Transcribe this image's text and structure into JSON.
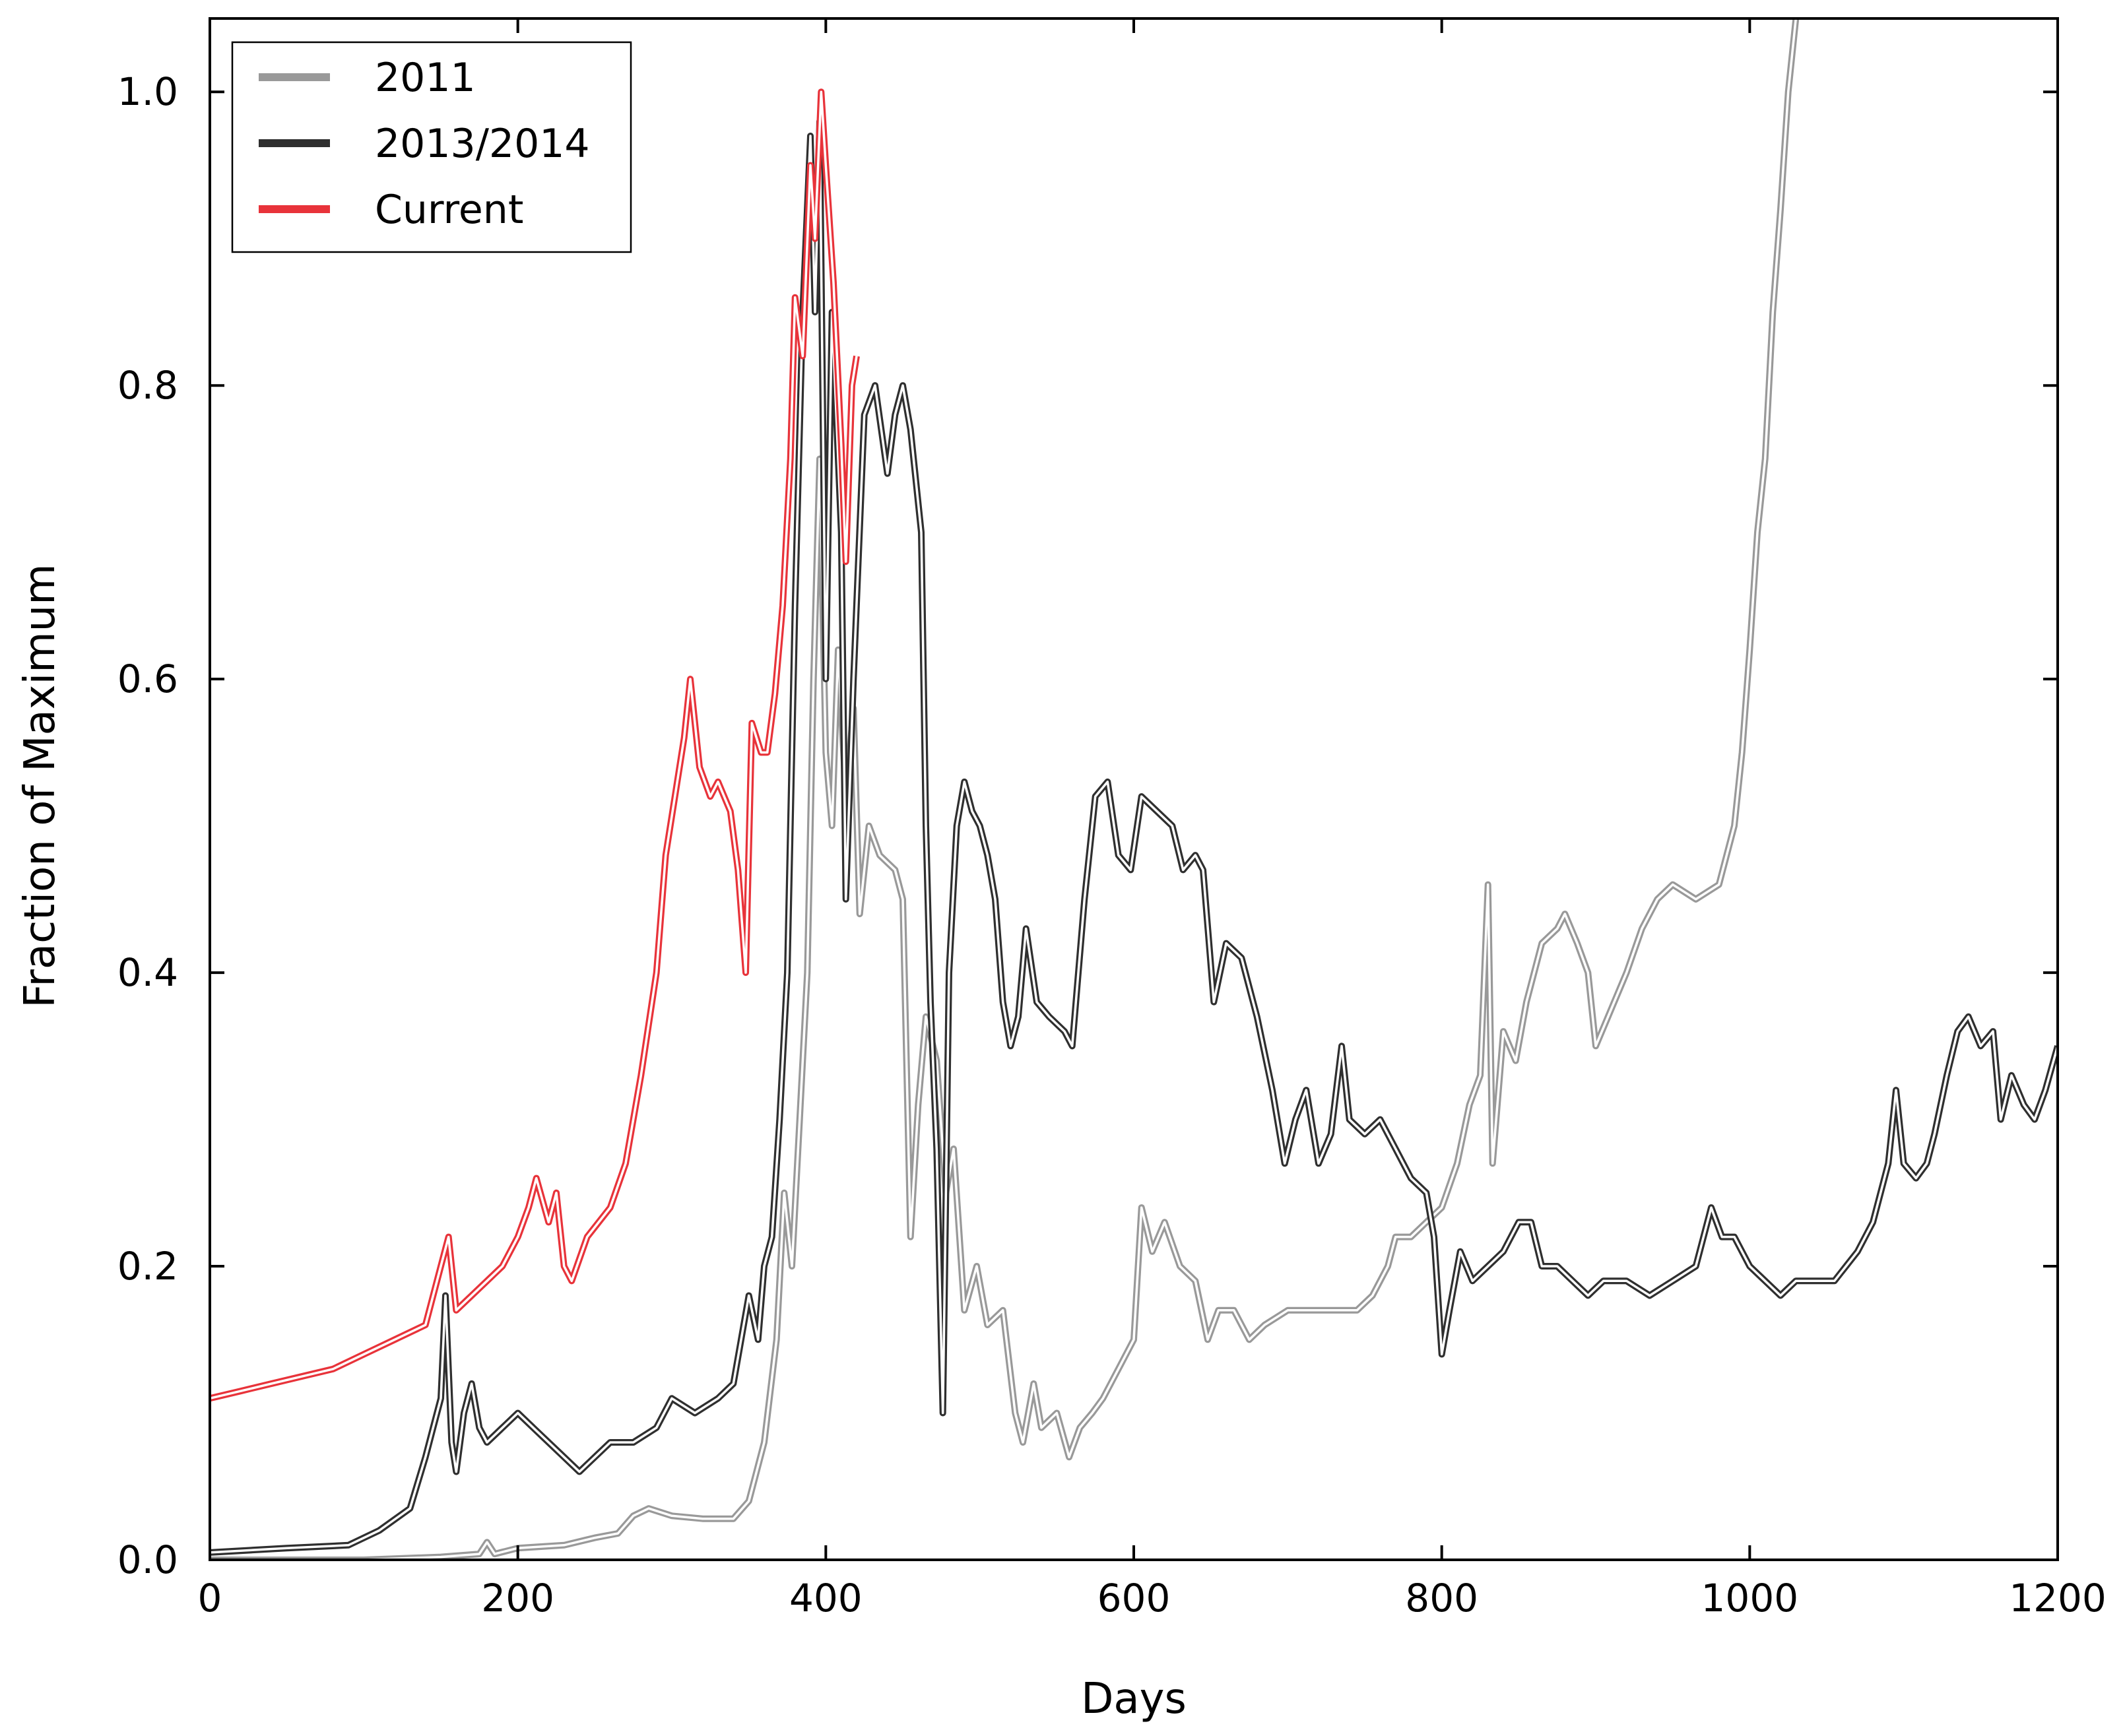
{
  "chart_data": {
    "type": "line",
    "xlabel": "Days",
    "ylabel": "Fraction of Maximum",
    "xlim": [
      0,
      1200
    ],
    "ylim": [
      0,
      1.05
    ],
    "xticks": [
      0,
      200,
      400,
      600,
      800,
      1000,
      1200
    ],
    "yticks": [
      0.0,
      0.2,
      0.4,
      0.6,
      0.8,
      1.0
    ],
    "xtick_labels": [
      "0",
      "200",
      "400",
      "600",
      "800",
      "1000",
      "1200"
    ],
    "ytick_labels": [
      "0.0",
      "0.2",
      "0.4",
      "0.6",
      "0.8",
      "1.0"
    ],
    "grid": false,
    "legend": {
      "position": "top-left"
    },
    "series": [
      {
        "name": "2011",
        "color": "#999999",
        "points": [
          [
            0,
            0.0
          ],
          [
            60,
            0.0
          ],
          [
            100,
            0.0
          ],
          [
            150,
            0.002
          ],
          [
            175,
            0.004
          ],
          [
            180,
            0.012
          ],
          [
            185,
            0.004
          ],
          [
            200,
            0.008
          ],
          [
            230,
            0.01
          ],
          [
            250,
            0.015
          ],
          [
            265,
            0.018
          ],
          [
            275,
            0.03
          ],
          [
            285,
            0.035
          ],
          [
            300,
            0.03
          ],
          [
            320,
            0.028
          ],
          [
            340,
            0.028
          ],
          [
            350,
            0.04
          ],
          [
            360,
            0.08
          ],
          [
            368,
            0.15
          ],
          [
            373,
            0.25
          ],
          [
            378,
            0.2
          ],
          [
            383,
            0.3
          ],
          [
            388,
            0.4
          ],
          [
            392,
            0.6
          ],
          [
            396,
            0.75
          ],
          [
            400,
            0.55
          ],
          [
            404,
            0.5
          ],
          [
            408,
            0.62
          ],
          [
            413,
            0.52
          ],
          [
            418,
            0.58
          ],
          [
            422,
            0.44
          ],
          [
            428,
            0.5
          ],
          [
            435,
            0.48
          ],
          [
            445,
            0.47
          ],
          [
            450,
            0.45
          ],
          [
            455,
            0.22
          ],
          [
            460,
            0.31
          ],
          [
            465,
            0.37
          ],
          [
            472,
            0.34
          ],
          [
            478,
            0.25
          ],
          [
            483,
            0.28
          ],
          [
            490,
            0.17
          ],
          [
            498,
            0.2
          ],
          [
            505,
            0.16
          ],
          [
            515,
            0.17
          ],
          [
            523,
            0.1
          ],
          [
            528,
            0.08
          ],
          [
            535,
            0.12
          ],
          [
            540,
            0.09
          ],
          [
            550,
            0.1
          ],
          [
            558,
            0.07
          ],
          [
            565,
            0.09
          ],
          [
            573,
            0.1
          ],
          [
            580,
            0.11
          ],
          [
            590,
            0.13
          ],
          [
            600,
            0.15
          ],
          [
            605,
            0.24
          ],
          [
            612,
            0.21
          ],
          [
            620,
            0.23
          ],
          [
            630,
            0.2
          ],
          [
            640,
            0.19
          ],
          [
            648,
            0.15
          ],
          [
            655,
            0.17
          ],
          [
            665,
            0.17
          ],
          [
            675,
            0.15
          ],
          [
            685,
            0.16
          ],
          [
            700,
            0.17
          ],
          [
            715,
            0.17
          ],
          [
            730,
            0.17
          ],
          [
            745,
            0.17
          ],
          [
            755,
            0.18
          ],
          [
            765,
            0.2
          ],
          [
            770,
            0.22
          ],
          [
            780,
            0.22
          ],
          [
            790,
            0.23
          ],
          [
            800,
            0.24
          ],
          [
            810,
            0.27
          ],
          [
            818,
            0.31
          ],
          [
            825,
            0.33
          ],
          [
            830,
            0.46
          ],
          [
            833,
            0.27
          ],
          [
            840,
            0.36
          ],
          [
            848,
            0.34
          ],
          [
            855,
            0.38
          ],
          [
            865,
            0.42
          ],
          [
            875,
            0.43
          ],
          [
            880,
            0.44
          ],
          [
            888,
            0.42
          ],
          [
            895,
            0.4
          ],
          [
            900,
            0.35
          ],
          [
            908,
            0.37
          ],
          [
            920,
            0.4
          ],
          [
            930,
            0.43
          ],
          [
            940,
            0.45
          ],
          [
            950,
            0.46
          ],
          [
            965,
            0.45
          ],
          [
            980,
            0.46
          ],
          [
            990,
            0.5
          ],
          [
            995,
            0.55
          ],
          [
            1000,
            0.62
          ],
          [
            1005,
            0.7
          ],
          [
            1010,
            0.75
          ],
          [
            1015,
            0.85
          ],
          [
            1020,
            0.92
          ],
          [
            1025,
            1.0
          ],
          [
            1030,
            1.05
          ]
        ]
      },
      {
        "name": "2013/2014",
        "color": "#2f2f2f",
        "points": [
          [
            0,
            0.005
          ],
          [
            50,
            0.008
          ],
          [
            90,
            0.01
          ],
          [
            110,
            0.02
          ],
          [
            130,
            0.035
          ],
          [
            140,
            0.07
          ],
          [
            145,
            0.09
          ],
          [
            150,
            0.11
          ],
          [
            153,
            0.18
          ],
          [
            157,
            0.08
          ],
          [
            160,
            0.06
          ],
          [
            165,
            0.1
          ],
          [
            170,
            0.12
          ],
          [
            175,
            0.09
          ],
          [
            180,
            0.08
          ],
          [
            190,
            0.09
          ],
          [
            200,
            0.1
          ],
          [
            210,
            0.09
          ],
          [
            220,
            0.08
          ],
          [
            230,
            0.07
          ],
          [
            240,
            0.06
          ],
          [
            250,
            0.07
          ],
          [
            260,
            0.08
          ],
          [
            275,
            0.08
          ],
          [
            290,
            0.09
          ],
          [
            300,
            0.11
          ],
          [
            315,
            0.1
          ],
          [
            330,
            0.11
          ],
          [
            340,
            0.12
          ],
          [
            345,
            0.15
          ],
          [
            350,
            0.18
          ],
          [
            356,
            0.15
          ],
          [
            360,
            0.2
          ],
          [
            365,
            0.22
          ],
          [
            370,
            0.3
          ],
          [
            375,
            0.4
          ],
          [
            380,
            0.65
          ],
          [
            385,
            0.85
          ],
          [
            390,
            0.97
          ],
          [
            393,
            0.85
          ],
          [
            396,
            0.98
          ],
          [
            400,
            0.6
          ],
          [
            404,
            0.85
          ],
          [
            410,
            0.7
          ],
          [
            413,
            0.45
          ],
          [
            418,
            0.6
          ],
          [
            425,
            0.78
          ],
          [
            432,
            0.8
          ],
          [
            440,
            0.74
          ],
          [
            445,
            0.78
          ],
          [
            450,
            0.8
          ],
          [
            455,
            0.77
          ],
          [
            462,
            0.7
          ],
          [
            465,
            0.5
          ],
          [
            468,
            0.38
          ],
          [
            472,
            0.28
          ],
          [
            476,
            0.1
          ],
          [
            480,
            0.4
          ],
          [
            485,
            0.5
          ],
          [
            490,
            0.53
          ],
          [
            495,
            0.51
          ],
          [
            500,
            0.5
          ],
          [
            505,
            0.48
          ],
          [
            510,
            0.45
          ],
          [
            515,
            0.38
          ],
          [
            520,
            0.35
          ],
          [
            525,
            0.37
          ],
          [
            530,
            0.43
          ],
          [
            537,
            0.38
          ],
          [
            545,
            0.37
          ],
          [
            555,
            0.36
          ],
          [
            560,
            0.35
          ],
          [
            568,
            0.45
          ],
          [
            575,
            0.52
          ],
          [
            583,
            0.53
          ],
          [
            590,
            0.48
          ],
          [
            598,
            0.47
          ],
          [
            605,
            0.52
          ],
          [
            615,
            0.51
          ],
          [
            625,
            0.5
          ],
          [
            632,
            0.47
          ],
          [
            640,
            0.48
          ],
          [
            645,
            0.47
          ],
          [
            652,
            0.38
          ],
          [
            660,
            0.42
          ],
          [
            670,
            0.41
          ],
          [
            680,
            0.37
          ],
          [
            690,
            0.32
          ],
          [
            698,
            0.27
          ],
          [
            705,
            0.3
          ],
          [
            712,
            0.32
          ],
          [
            720,
            0.27
          ],
          [
            728,
            0.29
          ],
          [
            735,
            0.35
          ],
          [
            740,
            0.3
          ],
          [
            750,
            0.29
          ],
          [
            760,
            0.3
          ],
          [
            770,
            0.28
          ],
          [
            780,
            0.26
          ],
          [
            790,
            0.25
          ],
          [
            795,
            0.22
          ],
          [
            800,
            0.14
          ],
          [
            805,
            0.17
          ],
          [
            812,
            0.21
          ],
          [
            820,
            0.19
          ],
          [
            830,
            0.2
          ],
          [
            840,
            0.21
          ],
          [
            850,
            0.23
          ],
          [
            858,
            0.23
          ],
          [
            865,
            0.2
          ],
          [
            875,
            0.2
          ],
          [
            885,
            0.19
          ],
          [
            895,
            0.18
          ],
          [
            905,
            0.19
          ],
          [
            920,
            0.19
          ],
          [
            935,
            0.18
          ],
          [
            950,
            0.19
          ],
          [
            965,
            0.2
          ],
          [
            975,
            0.24
          ],
          [
            982,
            0.22
          ],
          [
            990,
            0.22
          ],
          [
            1000,
            0.2
          ],
          [
            1010,
            0.19
          ],
          [
            1020,
            0.18
          ],
          [
            1030,
            0.19
          ],
          [
            1040,
            0.19
          ],
          [
            1055,
            0.19
          ],
          [
            1070,
            0.21
          ],
          [
            1080,
            0.23
          ],
          [
            1090,
            0.27
          ],
          [
            1095,
            0.32
          ],
          [
            1100,
            0.27
          ],
          [
            1108,
            0.26
          ],
          [
            1115,
            0.27
          ],
          [
            1120,
            0.29
          ],
          [
            1128,
            0.33
          ],
          [
            1135,
            0.36
          ],
          [
            1142,
            0.37
          ],
          [
            1150,
            0.35
          ],
          [
            1158,
            0.36
          ],
          [
            1163,
            0.3
          ],
          [
            1170,
            0.33
          ],
          [
            1178,
            0.31
          ],
          [
            1185,
            0.3
          ],
          [
            1192,
            0.32
          ],
          [
            1200,
            0.35
          ]
        ]
      },
      {
        "name": "Current",
        "color": "#e8333a",
        "points": [
          [
            0,
            0.11
          ],
          [
            20,
            0.115
          ],
          [
            40,
            0.12
          ],
          [
            60,
            0.125
          ],
          [
            80,
            0.13
          ],
          [
            100,
            0.14
          ],
          [
            120,
            0.15
          ],
          [
            140,
            0.16
          ],
          [
            150,
            0.2
          ],
          [
            155,
            0.22
          ],
          [
            160,
            0.17
          ],
          [
            170,
            0.18
          ],
          [
            180,
            0.19
          ],
          [
            190,
            0.2
          ],
          [
            200,
            0.22
          ],
          [
            207,
            0.24
          ],
          [
            212,
            0.26
          ],
          [
            220,
            0.23
          ],
          [
            225,
            0.25
          ],
          [
            230,
            0.2
          ],
          [
            235,
            0.19
          ],
          [
            245,
            0.22
          ],
          [
            260,
            0.24
          ],
          [
            270,
            0.27
          ],
          [
            280,
            0.33
          ],
          [
            290,
            0.4
          ],
          [
            296,
            0.48
          ],
          [
            302,
            0.52
          ],
          [
            308,
            0.56
          ],
          [
            312,
            0.6
          ],
          [
            318,
            0.54
          ],
          [
            325,
            0.52
          ],
          [
            330,
            0.53
          ],
          [
            338,
            0.51
          ],
          [
            343,
            0.47
          ],
          [
            348,
            0.4
          ],
          [
            352,
            0.57
          ],
          [
            358,
            0.55
          ],
          [
            362,
            0.55
          ],
          [
            367,
            0.59
          ],
          [
            372,
            0.65
          ],
          [
            377,
            0.75
          ],
          [
            380,
            0.86
          ],
          [
            385,
            0.82
          ],
          [
            390,
            0.95
          ],
          [
            393,
            0.9
          ],
          [
            397,
            1.0
          ],
          [
            400,
            0.95
          ],
          [
            405,
            0.87
          ],
          [
            410,
            0.76
          ],
          [
            413,
            0.68
          ],
          [
            417,
            0.8
          ],
          [
            420,
            0.82
          ]
        ]
      }
    ]
  }
}
